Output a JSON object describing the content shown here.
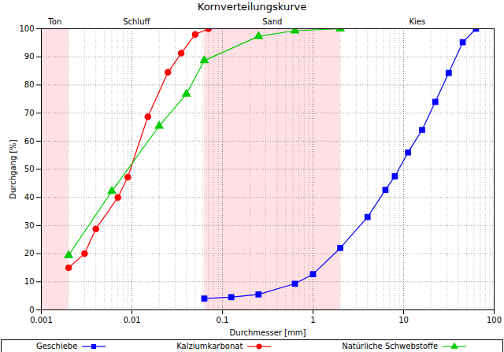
{
  "chart_data": {
    "type": "line",
    "title": "Kornverteilungskurve",
    "x_label": "Durchmesser [mm]",
    "y_label": "Durchgang [%]",
    "log": "x",
    "grid": true,
    "legend": "bottom",
    "xlim": [
      0.001,
      100
    ],
    "xticks": [
      0.001,
      0.01,
      0.1,
      1,
      10,
      100
    ],
    "ylim": [
      0,
      100
    ],
    "yticks": [
      0,
      10,
      20,
      30,
      40,
      50,
      60,
      70,
      80,
      90,
      100
    ],
    "zones": [
      {
        "label": "Ton",
        "from": 0.001,
        "to": 0.002,
        "color": "#ffe0e4"
      },
      {
        "label": "Schluff",
        "from": 0.002,
        "to": 0.063
      },
      {
        "label": "Sand",
        "from": 0.063,
        "to": 2,
        "color": "#ffe0e4"
      },
      {
        "label": "Kies",
        "from": 2,
        "to": 100
      }
    ],
    "series": [
      {
        "name": "Geschiebe",
        "color": "#0000ff",
        "marker": "square",
        "x": [
          0.063,
          0.125,
          0.25,
          0.63,
          1,
          2,
          4,
          6.3,
          8,
          11.2,
          16,
          22.4,
          31.5,
          45,
          63
        ],
        "values": [
          4,
          4.5,
          5.5,
          9.3,
          12.7,
          22,
          33,
          42.7,
          47.5,
          56,
          64,
          74,
          84.3,
          95.2,
          100
        ]
      },
      {
        "name": "Kalziumkarbonat",
        "color": "#ff0000",
        "marker": "circle",
        "x": [
          0.002,
          0.003,
          0.004,
          0.007,
          0.009,
          0.015,
          0.025,
          0.035,
          0.05,
          0.07
        ],
        "values": [
          15,
          20,
          28.8,
          40,
          47.2,
          68.7,
          84.5,
          91.3,
          98,
          100
        ]
      },
      {
        "name": "Natürliche Schwebstoffe",
        "color": "#00cc00",
        "marker": "triangle",
        "x": [
          0.002,
          0.006,
          0.02,
          0.04,
          0.063,
          0.25,
          0.63,
          2
        ],
        "values": [
          19.4,
          42.2,
          65.4,
          76.8,
          88.7,
          97.3,
          99.3,
          100
        ]
      }
    ]
  }
}
